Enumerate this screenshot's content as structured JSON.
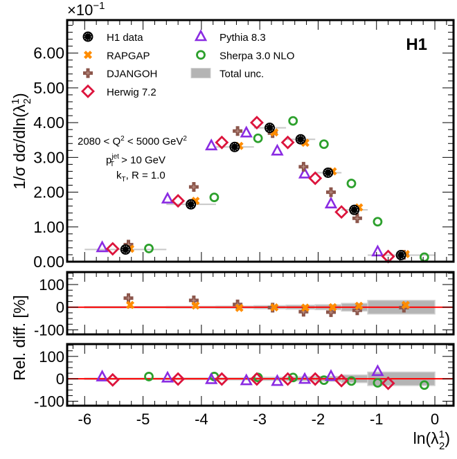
{
  "chart_data": {
    "type": "scatter",
    "experiment_label": "H1",
    "y_multiplier": "×10",
    "y_multiplier_exp": "−1",
    "ylabel_top": "1/σ dσ/dln(λ",
    "ylabel_top_sup": "1",
    "ylabel_top_sub": "2",
    "ylabel_ratio": "Rel. diff. [%]",
    "xlabel": "ln(λ",
    "xlabel_sup": "1",
    "xlabel_sub": "2",
    "xlim": [
      -6.3,
      0.32
    ],
    "ylim_top": [
      0,
      6.95
    ],
    "ylim_ratio": [
      -120,
      155
    ],
    "x_ticks": [
      -6,
      -5,
      -4,
      -3,
      -2,
      -1,
      0
    ],
    "x_tick_labels": [
      "-6",
      "-5",
      "-4",
      "-3",
      "-2",
      "-1",
      "0"
    ],
    "y_ticks_top": [
      0,
      1,
      2,
      3,
      4,
      5,
      6
    ],
    "y_tick_labels_top": [
      "0.00",
      "1.00",
      "2.00",
      "3.00",
      "4.00",
      "5.00",
      "6.00"
    ],
    "y_ticks_ratio": [
      -100,
      0,
      100
    ],
    "y_tick_labels_ratio": [
      "-100",
      "0",
      "100"
    ],
    "annotation": {
      "line1_a": "2080 < Q",
      "line1_sup": "2",
      "line1_b": " < 5000 GeV",
      "line1_sup2": "2",
      "line2_a": "p",
      "line2_sup": "jet",
      "line2_sub": "T",
      "line2_b": " > 10 GeV",
      "line3_a": "k",
      "line3_sub": "T",
      "line3_b": ", R = 1.0"
    },
    "legend": {
      "placement": "top-left",
      "entries": [
        {
          "name": "H1 data",
          "key": "data"
        },
        {
          "name": "RAPGAP",
          "key": "rapgap"
        },
        {
          "name": "DJANGOH",
          "key": "djangoh"
        },
        {
          "name": "Herwig 7.2",
          "key": "herwig"
        },
        {
          "name": "Pythia 8.3",
          "key": "pythia"
        },
        {
          "name": "Sherpa 3.0 NLO",
          "key": "sherpa"
        },
        {
          "name": "Total unc.",
          "key": "unc"
        }
      ]
    },
    "colors": {
      "data": "#000000",
      "rapgap": "#ff8c00",
      "djangoh": "#8c564b",
      "herwig": "#dc143c",
      "pythia": "#8a2be2",
      "sherpa": "#2ca02c",
      "unc": "#b4b4b4",
      "ref_line": "#ff0000"
    },
    "bins": [
      {
        "lo": -6.0,
        "hi": -4.6,
        "center": -5.3
      },
      {
        "lo": -4.6,
        "hi": -3.75,
        "center": -4.18
      },
      {
        "lo": -3.75,
        "hi": -3.1,
        "center": -3.43
      },
      {
        "lo": -3.1,
        "hi": -2.55,
        "center": -2.83
      },
      {
        "lo": -2.55,
        "hi": -2.05,
        "center": -2.3
      },
      {
        "lo": -2.05,
        "hi": -1.6,
        "center": -1.83
      },
      {
        "lo": -1.6,
        "hi": -1.15,
        "center": -1.38
      },
      {
        "lo": -1.15,
        "hi": 0.0,
        "center": -0.58
      }
    ],
    "series": [
      {
        "name": "H1 data",
        "key": "data",
        "x_offset": 0.0,
        "values": [
          0.35,
          1.65,
          3.3,
          3.85,
          3.52,
          2.56,
          1.49,
          0.19
        ],
        "unc_rel_pct": [
          3,
          4,
          5,
          7,
          9,
          11,
          17,
          30
        ]
      },
      {
        "name": "RAPGAP",
        "key": "rapgap",
        "x_offset": 0.08,
        "values": [
          0.37,
          1.75,
          3.33,
          3.72,
          3.42,
          2.6,
          1.56,
          0.22
        ],
        "rel_diff_pct": [
          10,
          7,
          -3,
          -1,
          -2,
          0,
          6,
          10
        ]
      },
      {
        "name": "DJANGOH",
        "key": "djangoh",
        "x_offset": 0.05,
        "values": [
          0.49,
          2.15,
          3.76,
          3.7,
          2.73,
          2.0,
          1.25,
          0.2
        ],
        "rel_diff_pct": [
          40,
          30,
          12,
          -2,
          -20,
          -22,
          -14,
          -2
        ]
      },
      {
        "name": "Herwig 7.2",
        "key": "herwig",
        "x_offset": -0.22,
        "values": [
          0.37,
          1.75,
          3.43,
          4.0,
          3.43,
          2.4,
          1.43,
          0.15
        ],
        "rel_diff_pct": [
          -5,
          -1,
          -1,
          -1,
          -1,
          -1,
          -8,
          -20
        ]
      },
      {
        "name": "Pythia 8.3",
        "key": "pythia",
        "x_offset": -0.4,
        "values": [
          0.4,
          1.8,
          3.33,
          3.7,
          3.18,
          2.52,
          1.66,
          0.28
        ],
        "rel_diff_pct": [
          8,
          3,
          -4,
          -9,
          -12,
          -3,
          10,
          32
        ]
      },
      {
        "name": "Sherpa 3.0 NLO",
        "key": "sherpa",
        "x_offset": 0.4,
        "values": [
          0.38,
          1.85,
          3.55,
          4.05,
          3.38,
          2.25,
          1.15,
          0.13
        ],
        "rel_diff_pct": [
          10,
          10,
          6,
          6,
          -6,
          -10,
          -18,
          -28
        ]
      }
    ],
    "ratio_panels": [
      {
        "name": "rapgap-djangoh-ratio",
        "series": [
          "rapgap",
          "djangoh"
        ]
      },
      {
        "name": "herwig-pythia-sherpa-ratio",
        "series": [
          "herwig",
          "pythia",
          "sherpa"
        ]
      }
    ]
  }
}
